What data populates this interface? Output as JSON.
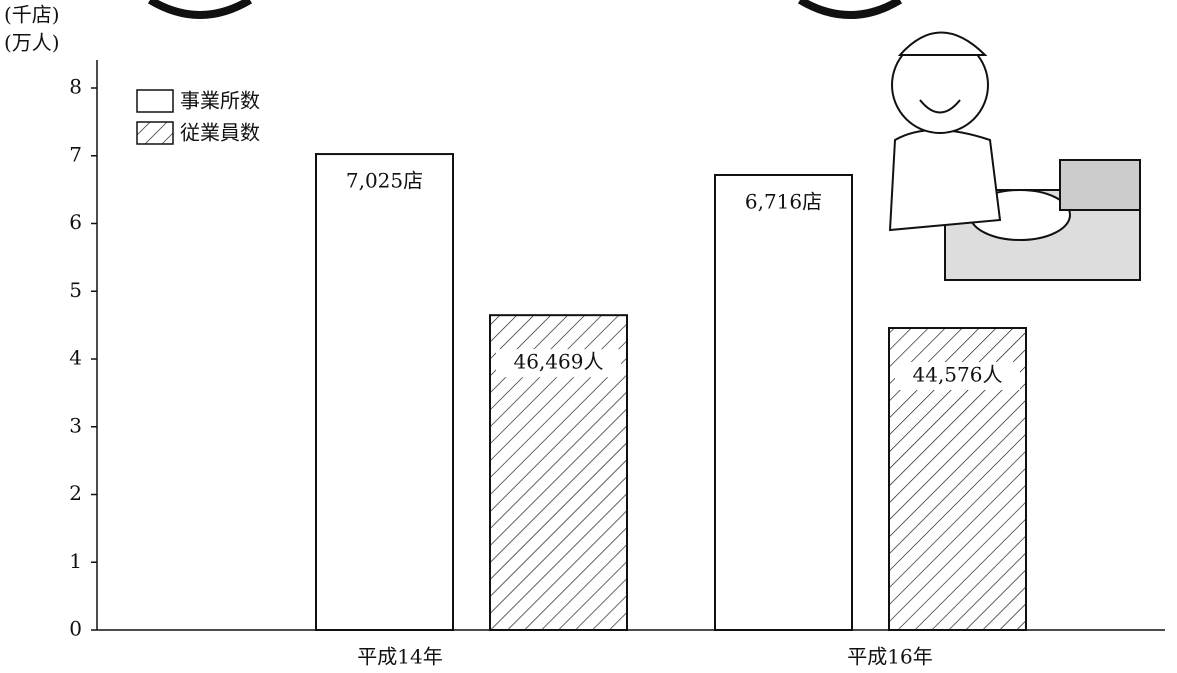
{
  "chart_data": {
    "type": "bar",
    "y_units": [
      "(千店)",
      "(万人)"
    ],
    "categories": [
      "平成14年",
      "平成16年"
    ],
    "series": [
      {
        "name": "事業所数",
        "color": "#ffffff",
        "values": [
          7.025,
          6.716
        ],
        "value_labels": [
          "7,025店",
          "6,716店"
        ]
      },
      {
        "name": "従業員数",
        "color": "hatch",
        "values": [
          4.6469,
          4.4576
        ],
        "value_labels": [
          "46,469人",
          "44,576人"
        ]
      }
    ],
    "ylim": [
      0,
      8
    ],
    "yticks": [
      0,
      1,
      2,
      3,
      4,
      5,
      6,
      7,
      8
    ],
    "legend": "top-left"
  }
}
